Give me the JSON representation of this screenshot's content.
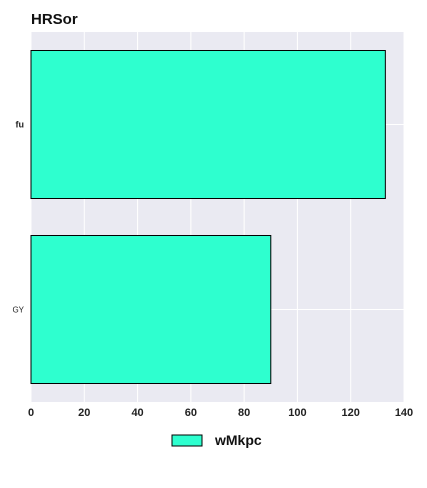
{
  "chart_data": {
    "type": "bar",
    "orientation": "horizontal",
    "title": "HRSor",
    "categories": [
      "fu",
      "GY"
    ],
    "series": [
      {
        "name": "wMkpc",
        "values": [
          133,
          90
        ]
      }
    ],
    "xlim": [
      0,
      140
    ],
    "xticks": [
      "0",
      "20",
      "40",
      "60",
      "80",
      "100",
      "120",
      "140"
    ],
    "grid": true,
    "legend": "bottom-center",
    "colors": {
      "bar": "#2effcf",
      "bar_edge": "#000000",
      "plot_bg": "#eaeaf2",
      "grid": "#ffffff"
    }
  }
}
